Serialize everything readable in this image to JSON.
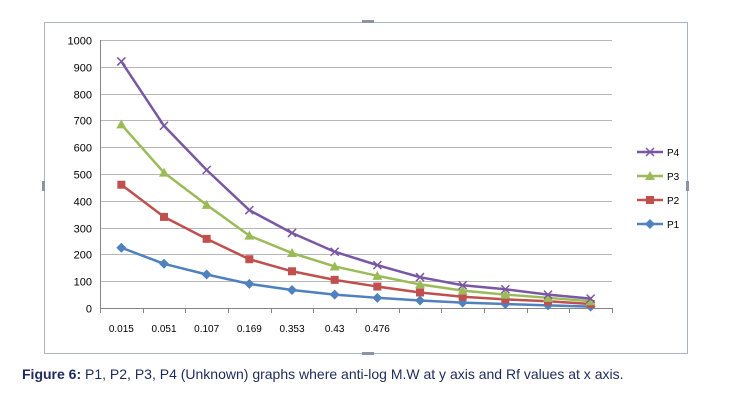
{
  "chart_data": {
    "type": "line",
    "categories": [
      "0.015",
      "0.051",
      "0.107",
      "0.169",
      "0.353",
      "0.43",
      "0.476",
      "",
      "",
      "",
      "",
      ""
    ],
    "ylim": [
      0,
      1000
    ],
    "yticks": [
      0,
      100,
      200,
      300,
      400,
      500,
      600,
      700,
      800,
      900,
      1000
    ],
    "grid": true,
    "legend": "right",
    "series": [
      {
        "name": "P4",
        "color": "#7a57a3",
        "marker": "x",
        "values": [
          920,
          680,
          515,
          365,
          280,
          210,
          160,
          115,
          85,
          70,
          50,
          35
        ]
      },
      {
        "name": "P3",
        "color": "#9bbb59",
        "marker": "triangle",
        "values": [
          685,
          505,
          385,
          270,
          205,
          155,
          120,
          88,
          65,
          50,
          38,
          25
        ]
      },
      {
        "name": "P2",
        "color": "#c0504d",
        "marker": "square",
        "values": [
          460,
          340,
          258,
          182,
          137,
          105,
          80,
          58,
          42,
          32,
          25,
          15
        ]
      },
      {
        "name": "P1",
        "color": "#4f81bd",
        "marker": "diamond",
        "values": [
          225,
          165,
          125,
          90,
          67,
          50,
          38,
          28,
          20,
          15,
          10,
          5
        ]
      }
    ]
  },
  "caption": {
    "label": "Figure 6:",
    "text": " P1, P2, P3, P4 (Unknown) graphs where anti-log M.W at y axis and Rf values at x axis."
  }
}
